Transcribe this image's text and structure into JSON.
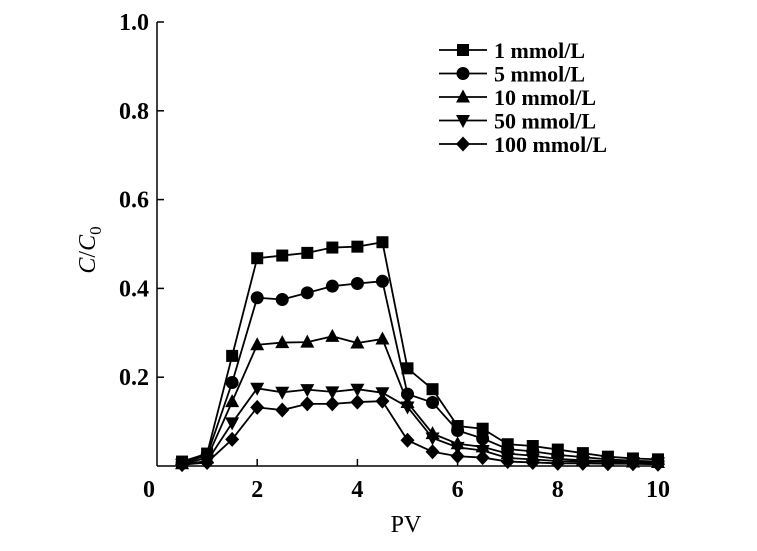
{
  "chart_data": {
    "type": "line",
    "title": "",
    "xlabel": "PV",
    "ylabel": {
      "main": "C",
      "sep": "/",
      "sym": "C",
      "sub": "0"
    },
    "xlim": [
      0,
      10
    ],
    "ylim": [
      0,
      1.0
    ],
    "xticks": [
      "0",
      "2",
      "4",
      "6",
      "8",
      "10"
    ],
    "yticks": [
      "0.2",
      "0.4",
      "0.6",
      "0.8",
      "1.0"
    ],
    "grid": false,
    "legend_position": "top-right",
    "x": [
      0.5,
      1.0,
      1.5,
      2.0,
      2.5,
      3.0,
      3.5,
      4.0,
      4.5,
      5.0,
      5.5,
      6.0,
      6.5,
      7.0,
      7.5,
      8.0,
      8.5,
      9.0,
      9.5,
      10.0
    ],
    "series": [
      {
        "name": "1 mmol/L",
        "marker": "square",
        "values": [
          0.01,
          0.028,
          0.248,
          0.468,
          0.474,
          0.48,
          0.492,
          0.494,
          0.504,
          0.22,
          0.173,
          0.09,
          0.084,
          0.049,
          0.045,
          0.037,
          0.029,
          0.021,
          0.017,
          0.015
        ]
      },
      {
        "name": "5 mmol/L",
        "marker": "circle",
        "values": [
          0.007,
          0.024,
          0.188,
          0.379,
          0.375,
          0.39,
          0.405,
          0.411,
          0.416,
          0.162,
          0.143,
          0.08,
          0.062,
          0.038,
          0.033,
          0.025,
          0.02,
          0.015,
          0.012,
          0.01
        ]
      },
      {
        "name": "10 mmol/L",
        "marker": "triangle-up",
        "values": [
          0.005,
          0.018,
          0.145,
          0.273,
          0.278,
          0.279,
          0.292,
          0.277,
          0.286,
          0.143,
          0.073,
          0.05,
          0.043,
          0.028,
          0.023,
          0.016,
          0.013,
          0.011,
          0.009,
          0.008
        ]
      },
      {
        "name": "50 mmol/L",
        "marker": "triangle-down",
        "values": [
          0.004,
          0.011,
          0.097,
          0.175,
          0.166,
          0.172,
          0.167,
          0.173,
          0.165,
          0.133,
          0.063,
          0.042,
          0.035,
          0.018,
          0.015,
          0.011,
          0.01,
          0.009,
          0.008,
          0.007
        ]
      },
      {
        "name": "100 mmol/L",
        "marker": "diamond",
        "values": [
          0.003,
          0.008,
          0.06,
          0.132,
          0.126,
          0.14,
          0.14,
          0.144,
          0.146,
          0.058,
          0.032,
          0.022,
          0.019,
          0.01,
          0.008,
          0.006,
          0.006,
          0.005,
          0.005,
          0.004
        ]
      }
    ]
  }
}
